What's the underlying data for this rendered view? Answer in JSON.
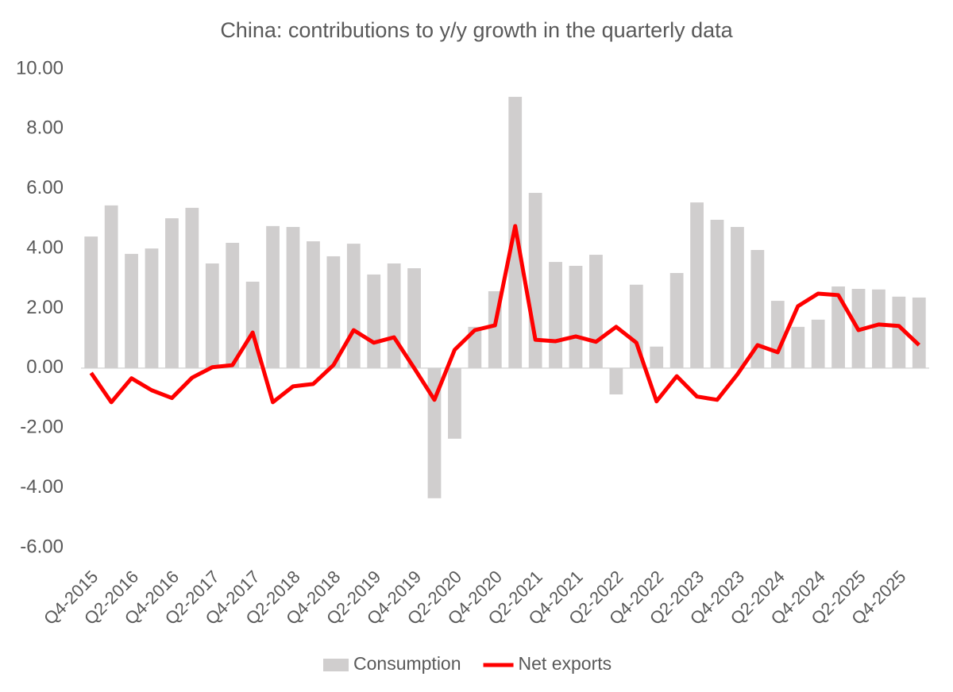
{
  "chart_data": {
    "type": "bar_line",
    "title": "China: contributions to y/y growth in the quarterly data",
    "categories": [
      "Q4-2015",
      null,
      "Q2-2016",
      null,
      "Q4-2016",
      null,
      "Q2-2017",
      null,
      "Q4-2017",
      null,
      "Q2-2018",
      null,
      "Q4-2018",
      null,
      "Q2-2019",
      null,
      "Q4-2019",
      null,
      "Q2-2020",
      null,
      "Q4-2020",
      null,
      "Q2-2021",
      null,
      "Q4-2021",
      null,
      "Q2-2022",
      null,
      "Q4-2022",
      null,
      "Q2-2023",
      null,
      "Q4-2023",
      null,
      "Q2-2024",
      null,
      "Q4-2024",
      null,
      "Q2-2025",
      null,
      "Q4-2025",
      null
    ],
    "series": [
      {
        "name": "Consumption",
        "type": "bar",
        "color": "#d0cece",
        "values": [
          4.4,
          5.44,
          3.82,
          4.0,
          5.01,
          5.36,
          3.5,
          4.19,
          2.89,
          4.75,
          4.72,
          4.24,
          3.74,
          4.16,
          3.13,
          3.5,
          3.34,
          -4.35,
          -2.36,
          1.38,
          2.57,
          9.07,
          5.86,
          3.55,
          3.42,
          3.79,
          -0.88,
          2.79,
          0.72,
          3.18,
          5.54,
          4.96,
          4.72,
          3.95,
          2.25,
          1.38,
          1.62,
          2.73,
          2.65,
          2.63,
          2.39,
          2.36
        ]
      },
      {
        "name": "Net exports",
        "type": "line",
        "color": "#ff0000",
        "values": [
          -0.16,
          -1.14,
          -0.34,
          -0.74,
          -1.0,
          -0.32,
          0.03,
          0.1,
          1.19,
          -1.14,
          -0.61,
          -0.53,
          0.1,
          1.27,
          0.85,
          1.03,
          0.0,
          -1.06,
          0.61,
          1.27,
          1.43,
          4.75,
          0.95,
          0.9,
          1.06,
          0.88,
          1.38,
          0.85,
          -1.11,
          -0.27,
          -0.95,
          -1.06,
          -0.21,
          0.77,
          0.53,
          2.07,
          2.49,
          2.44,
          1.27,
          1.46,
          1.41,
          0.77
        ]
      }
    ],
    "ylim": [
      -6,
      10
    ],
    "yticks": [
      {
        "value": -6,
        "label": "-6.00"
      },
      {
        "value": -4,
        "label": "-4.00"
      },
      {
        "value": -2,
        "label": "-2.00"
      },
      {
        "value": 0,
        "label": "0.00"
      },
      {
        "value": 2,
        "label": "2.00"
      },
      {
        "value": 4,
        "label": "4.00"
      },
      {
        "value": 6,
        "label": "6.00"
      },
      {
        "value": 8,
        "label": "8.00"
      },
      {
        "value": 10,
        "label": "10.00"
      }
    ],
    "legend": "bottom"
  }
}
